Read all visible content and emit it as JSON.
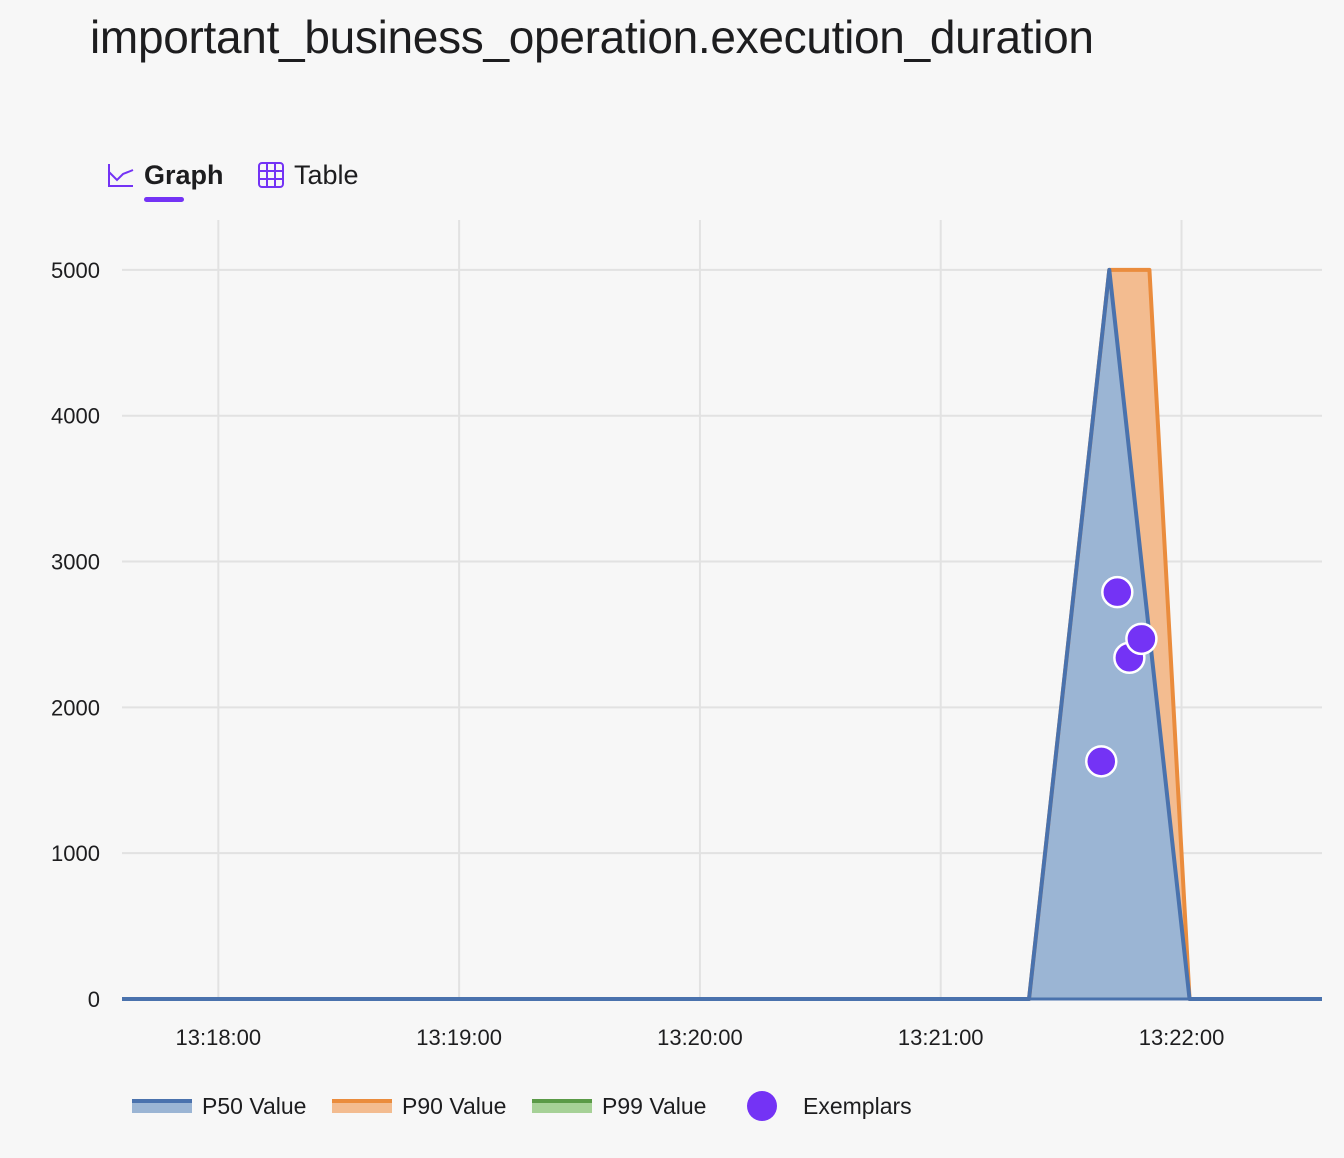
{
  "page": {
    "title": "important_business_operation.execution_duration"
  },
  "tabs": [
    {
      "label": "Graph",
      "icon": "graph-icon",
      "active": true
    },
    {
      "label": "Table",
      "icon": "table-icon",
      "active": false
    }
  ],
  "colors": {
    "accent": "#7433f5",
    "p50": "#4a72ad",
    "p50_fill": "#9bb5d4",
    "p90": "#ea8c3d",
    "p90_fill": "#f3bc90",
    "p99": "#5a9a47",
    "p99_fill": "#a6d197",
    "grid": "#e2e2e2"
  },
  "chart_data": {
    "type": "area",
    "title": "important_business_operation.execution_duration",
    "xlabel": "",
    "ylabel": "",
    "x_ticks": [
      "13:18:00",
      "13:19:00",
      "13:20:00",
      "13:21:00",
      "13:22:00"
    ],
    "y_ticks": [
      0,
      1000,
      2000,
      3000,
      4000,
      5000
    ],
    "xlim": [
      "13:17:36",
      "13:22:35"
    ],
    "ylim": [
      0,
      5260
    ],
    "grid": true,
    "legend_position": "bottom-left",
    "series": [
      {
        "name": "P50 Value",
        "color_key": "p50",
        "points": [
          [
            "13:17:36",
            0
          ],
          [
            "13:21:22",
            0
          ],
          [
            "13:21:42",
            5000
          ],
          [
            "13:22:02",
            0
          ],
          [
            "13:22:35",
            0
          ]
        ]
      },
      {
        "name": "P90 Value",
        "color_key": "p90",
        "points": [
          [
            "13:17:36",
            0
          ],
          [
            "13:21:22",
            0
          ],
          [
            "13:21:42",
            5000
          ],
          [
            "13:21:52",
            5000
          ],
          [
            "13:22:02",
            0
          ],
          [
            "13:22:35",
            0
          ]
        ]
      },
      {
        "name": "P99 Value",
        "color_key": "p99",
        "points": []
      }
    ],
    "exemplars": {
      "name": "Exemplars",
      "points": [
        [
          "13:21:44",
          2790
        ],
        [
          "13:21:47",
          2340
        ],
        [
          "13:21:50",
          2470
        ],
        [
          "13:21:40",
          1630
        ]
      ]
    }
  },
  "legend": [
    {
      "label": "P50 Value",
      "kind": "area",
      "color_key": "p50"
    },
    {
      "label": "P90 Value",
      "kind": "area",
      "color_key": "p90"
    },
    {
      "label": "P99 Value",
      "kind": "area",
      "color_key": "p99"
    },
    {
      "label": "Exemplars",
      "kind": "dot",
      "color_key": "accent"
    }
  ]
}
